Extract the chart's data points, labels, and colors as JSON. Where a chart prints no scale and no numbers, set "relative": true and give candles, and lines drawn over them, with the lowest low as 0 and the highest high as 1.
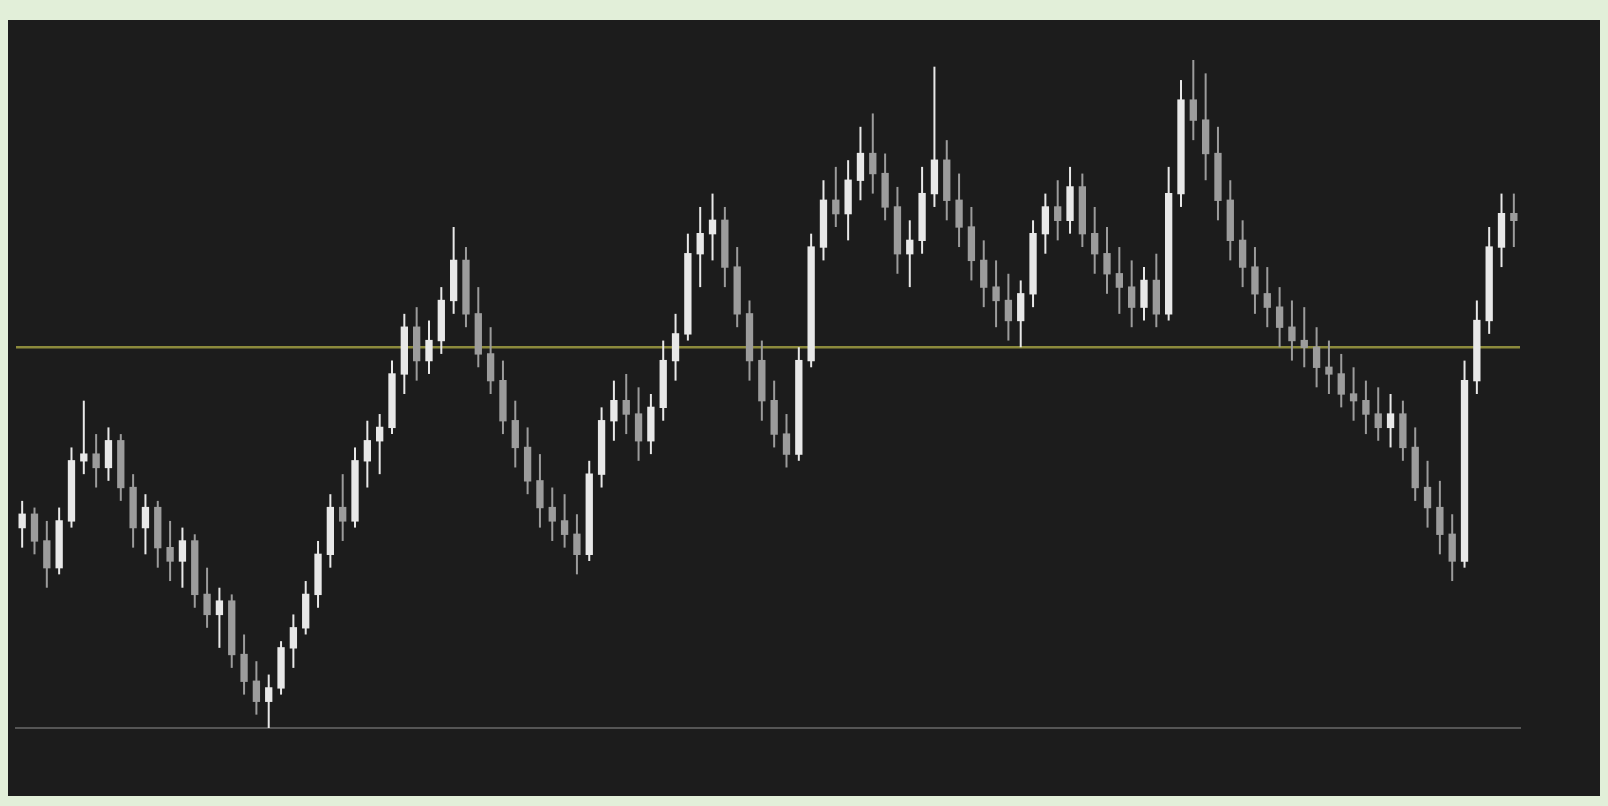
{
  "chart_data": {
    "type": "candlestick",
    "relative": true,
    "colors": [
      "#e8e8e8",
      "#9c9c9c",
      "#9c9c9c",
      "#e8e8e8",
      "#e8e8e8",
      "#e8e8e8",
      "#9c9c9c",
      "#e8e8e8",
      "#9c9c9c",
      "#9c9c9c",
      "#e8e8e8",
      "#9c9c9c",
      "#9c9c9c",
      "#e8e8e8",
      "#9c9c9c",
      "#9c9c9c",
      "#e8e8e8",
      "#9c9c9c",
      "#9c9c9c",
      "#9c9c9c",
      "#e8e8e8",
      "#e8e8e8",
      "#e8e8e8",
      "#e8e8e8",
      "#e8e8e8",
      "#e8e8e8",
      "#9c9c9c",
      "#e8e8e8",
      "#e8e8e8",
      "#e8e8e8",
      "#e8e8e8",
      "#e8e8e8",
      "#9c9c9c",
      "#e8e8e8",
      "#e8e8e8",
      "#e8e8e8",
      "#9c9c9c",
      "#9c9c9c",
      "#9c9c9c",
      "#9c9c9c",
      "#9c9c9c",
      "#9c9c9c",
      "#9c9c9c",
      "#9c9c9c",
      "#9c9c9c",
      "#9c9c9c",
      "#e8e8e8",
      "#e8e8e8",
      "#e8e8e8",
      "#9c9c9c",
      "#9c9c9c",
      "#e8e8e8",
      "#e8e8e8",
      "#e8e8e8",
      "#e8e8e8",
      "#e8e8e8",
      "#e8e8e8",
      "#9c9c9c",
      "#9c9c9c",
      "#9c9c9c",
      "#9c9c9c",
      "#9c9c9c",
      "#9c9c9c",
      "#e8e8e8",
      "#e8e8e8",
      "#e8e8e8",
      "#9c9c9c",
      "#e8e8e8",
      "#e8e8e8",
      "#9c9c9c",
      "#9c9c9c",
      "#9c9c9c",
      "#e8e8e8",
      "#e8e8e8",
      "#e8e8e8",
      "#9c9c9c",
      "#9c9c9c",
      "#9c9c9c",
      "#9c9c9c",
      "#9c9c9c",
      "#9c9c9c",
      "#e8e8e8",
      "#e8e8e8",
      "#e8e8e8",
      "#9c9c9c",
      "#e8e8e8",
      "#9c9c9c",
      "#9c9c9c",
      "#9c9c9c",
      "#9c9c9c",
      "#9c9c9c",
      "#e8e8e8",
      "#9c9c9c",
      "#e8e8e8",
      "#e8e8e8",
      "#9c9c9c",
      "#9c9c9c",
      "#9c9c9c",
      "#9c9c9c",
      "#9c9c9c",
      "#9c9c9c",
      "#9c9c9c",
      "#9c9c9c",
      "#9c9c9c",
      "#9c9c9c",
      "#9c9c9c",
      "#9c9c9c",
      "#9c9c9c",
      "#9c9c9c",
      "#9c9c9c",
      "#9c9c9c",
      "#e8e8e8",
      "#9c9c9c",
      "#9c9c9c",
      "#9c9c9c",
      "#9c9c9c",
      "#9c9c9c",
      "#e8e8e8",
      "#e8e8e8",
      "#e8e8e8",
      "#e8e8e8",
      "#9c9c9c"
    ],
    "categories": [
      null,
      null,
      null,
      null,
      null,
      null,
      null,
      null,
      null,
      null,
      null,
      null,
      null,
      null,
      null,
      null,
      null,
      null,
      null,
      null,
      null,
      null,
      null,
      null,
      null,
      null,
      null,
      null,
      null,
      null,
      null,
      null,
      null,
      null,
      null,
      null,
      null,
      null,
      null,
      null,
      null,
      null,
      null,
      null,
      null,
      null,
      null,
      null,
      null,
      null,
      null,
      null,
      null,
      null,
      null,
      null,
      null,
      null,
      null,
      null,
      null,
      null,
      null,
      null,
      null,
      null,
      null,
      null,
      null,
      null,
      null,
      null,
      null,
      null,
      null,
      null,
      null,
      null,
      null,
      null,
      null,
      null,
      null,
      null,
      null,
      null,
      null,
      null,
      null,
      null,
      null,
      null,
      null,
      null,
      null,
      null,
      null,
      null,
      null,
      null,
      null,
      null,
      null,
      null,
      null,
      null,
      null,
      null,
      null,
      null,
      null,
      null,
      null,
      null,
      null,
      null,
      null,
      null,
      null,
      null,
      null,
      null
    ],
    "ohlc": [
      [
        0.3,
        0.34,
        0.27,
        0.32
      ],
      [
        0.32,
        0.33,
        0.26,
        0.28
      ],
      [
        0.28,
        0.31,
        0.21,
        0.24
      ],
      [
        0.24,
        0.33,
        0.23,
        0.31
      ],
      [
        0.31,
        0.42,
        0.3,
        0.4
      ],
      [
        0.4,
        0.49,
        0.38,
        0.41
      ],
      [
        0.41,
        0.44,
        0.36,
        0.39
      ],
      [
        0.39,
        0.45,
        0.37,
        0.43
      ],
      [
        0.43,
        0.44,
        0.34,
        0.36
      ],
      [
        0.36,
        0.38,
        0.27,
        0.3
      ],
      [
        0.3,
        0.35,
        0.26,
        0.33
      ],
      [
        0.33,
        0.34,
        0.24,
        0.27
      ],
      [
        0.27,
        0.31,
        0.22,
        0.25
      ],
      [
        0.25,
        0.3,
        0.21,
        0.28
      ],
      [
        0.28,
        0.29,
        0.18,
        0.2
      ],
      [
        0.2,
        0.24,
        0.15,
        0.17
      ],
      [
        0.17,
        0.21,
        0.12,
        0.19
      ],
      [
        0.19,
        0.2,
        0.09,
        0.11
      ],
      [
        0.11,
        0.14,
        0.05,
        0.07
      ],
      [
        0.07,
        0.1,
        0.02,
        0.04
      ],
      [
        0.04,
        0.08,
        0,
        0.06
      ],
      [
        0.06,
        0.13,
        0.05,
        0.12
      ],
      [
        0.12,
        0.17,
        0.09,
        0.15
      ],
      [
        0.15,
        0.22,
        0.14,
        0.2
      ],
      [
        0.2,
        0.28,
        0.18,
        0.26
      ],
      [
        0.26,
        0.35,
        0.24,
        0.33
      ],
      [
        0.33,
        0.38,
        0.28,
        0.31
      ],
      [
        0.31,
        0.42,
        0.3,
        0.4
      ],
      [
        0.4,
        0.46,
        0.36,
        0.43
      ],
      [
        0.43,
        0.47,
        0.38,
        0.45
      ],
      [
        0.45,
        0.55,
        0.44,
        0.53
      ],
      [
        0.53,
        0.62,
        0.5,
        0.6
      ],
      [
        0.6,
        0.63,
        0.52,
        0.55
      ],
      [
        0.55,
        0.61,
        0.53,
        0.58
      ],
      [
        0.58,
        0.66,
        0.56,
        0.64
      ],
      [
        0.64,
        0.75,
        0.62,
        0.7
      ],
      [
        0.7,
        0.72,
        0.6,
        0.62
      ],
      [
        0.62,
        0.66,
        0.54,
        0.56
      ],
      [
        0.56,
        0.6,
        0.5,
        0.52
      ],
      [
        0.52,
        0.55,
        0.44,
        0.46
      ],
      [
        0.46,
        0.49,
        0.39,
        0.42
      ],
      [
        0.42,
        0.45,
        0.35,
        0.37
      ],
      [
        0.37,
        0.41,
        0.3,
        0.33
      ],
      [
        0.33,
        0.36,
        0.28,
        0.31
      ],
      [
        0.31,
        0.35,
        0.27,
        0.29
      ],
      [
        0.29,
        0.32,
        0.23,
        0.26
      ],
      [
        0.26,
        0.4,
        0.25,
        0.38
      ],
      [
        0.38,
        0.48,
        0.36,
        0.46
      ],
      [
        0.46,
        0.52,
        0.43,
        0.49
      ],
      [
        0.49,
        0.53,
        0.44,
        0.47
      ],
      [
        0.47,
        0.51,
        0.4,
        0.43
      ],
      [
        0.43,
        0.5,
        0.41,
        0.48
      ],
      [
        0.48,
        0.58,
        0.46,
        0.55
      ],
      [
        0.55,
        0.62,
        0.52,
        0.59
      ],
      [
        0.59,
        0.74,
        0.58,
        0.71
      ],
      [
        0.71,
        0.78,
        0.66,
        0.74
      ],
      [
        0.74,
        0.8,
        0.7,
        0.76
      ],
      [
        0.76,
        0.78,
        0.66,
        0.69
      ],
      [
        0.69,
        0.72,
        0.6,
        0.62
      ],
      [
        0.62,
        0.64,
        0.52,
        0.55
      ],
      [
        0.55,
        0.58,
        0.46,
        0.49
      ],
      [
        0.49,
        0.52,
        0.42,
        0.44
      ],
      [
        0.44,
        0.47,
        0.39,
        0.41
      ],
      [
        0.41,
        0.57,
        0.4,
        0.55
      ],
      [
        0.55,
        0.74,
        0.54,
        0.72
      ],
      [
        0.72,
        0.82,
        0.7,
        0.79
      ],
      [
        0.79,
        0.84,
        0.75,
        0.77
      ],
      [
        0.77,
        0.85,
        0.73,
        0.82
      ],
      [
        0.82,
        0.9,
        0.79,
        0.86
      ],
      [
        0.86,
        0.92,
        0.8,
        0.83
      ],
      [
        0.83,
        0.86,
        0.76,
        0.78
      ],
      [
        0.78,
        0.81,
        0.68,
        0.71
      ],
      [
        0.71,
        0.76,
        0.66,
        0.73
      ],
      [
        0.73,
        0.84,
        0.71,
        0.8
      ],
      [
        0.8,
        0.99,
        0.78,
        0.85
      ],
      [
        0.85,
        0.88,
        0.76,
        0.79
      ],
      [
        0.79,
        0.83,
        0.72,
        0.75
      ],
      [
        0.75,
        0.78,
        0.67,
        0.7
      ],
      [
        0.7,
        0.73,
        0.63,
        0.66
      ],
      [
        0.66,
        0.7,
        0.6,
        0.64
      ],
      [
        0.64,
        0.68,
        0.58,
        0.61
      ],
      [
        0.61,
        0.67,
        0.57,
        0.65
      ],
      [
        0.65,
        0.76,
        0.63,
        0.74
      ],
      [
        0.74,
        0.8,
        0.71,
        0.78
      ],
      [
        0.78,
        0.82,
        0.73,
        0.76
      ],
      [
        0.76,
        0.84,
        0.74,
        0.81
      ],
      [
        0.81,
        0.83,
        0.72,
        0.74
      ],
      [
        0.74,
        0.78,
        0.68,
        0.71
      ],
      [
        0.71,
        0.75,
        0.65,
        0.68
      ],
      [
        0.68,
        0.72,
        0.62,
        0.66
      ],
      [
        0.66,
        0.7,
        0.6,
        0.63
      ],
      [
        0.63,
        0.69,
        0.61,
        0.67
      ],
      [
        0.67,
        0.71,
        0.6,
        0.62
      ],
      [
        0.62,
        0.84,
        0.61,
        0.8
      ],
      [
        0.8,
        0.97,
        0.78,
        0.94
      ],
      [
        0.94,
        1,
        0.88,
        0.91
      ],
      [
        0.91,
        0.98,
        0.82,
        0.86
      ],
      [
        0.86,
        0.9,
        0.76,
        0.79
      ],
      [
        0.79,
        0.82,
        0.7,
        0.73
      ],
      [
        0.73,
        0.76,
        0.66,
        0.69
      ],
      [
        0.69,
        0.72,
        0.62,
        0.65
      ],
      [
        0.65,
        0.69,
        0.6,
        0.63
      ],
      [
        0.63,
        0.66,
        0.57,
        0.6
      ],
      [
        0.6,
        0.64,
        0.55,
        0.58
      ],
      [
        0.58,
        0.63,
        0.54,
        0.57
      ],
      [
        0.57,
        0.6,
        0.51,
        0.54
      ],
      [
        0.54,
        0.58,
        0.5,
        0.53
      ],
      [
        0.53,
        0.56,
        0.48,
        0.5
      ],
      [
        0.5,
        0.54,
        0.46,
        0.49
      ],
      [
        0.49,
        0.52,
        0.44,
        0.47
      ],
      [
        0.47,
        0.51,
        0.43,
        0.45
      ],
      [
        0.45,
        0.5,
        0.42,
        0.47
      ],
      [
        0.47,
        0.49,
        0.4,
        0.42
      ],
      [
        0.42,
        0.45,
        0.34,
        0.36
      ],
      [
        0.36,
        0.4,
        0.3,
        0.33
      ],
      [
        0.33,
        0.37,
        0.26,
        0.29
      ],
      [
        0.29,
        0.32,
        0.22,
        0.25
      ],
      [
        0.25,
        0.55,
        0.24,
        0.52
      ],
      [
        0.52,
        0.64,
        0.5,
        0.61
      ],
      [
        0.61,
        0.75,
        0.59,
        0.72
      ],
      [
        0.72,
        0.8,
        0.69,
        0.77
      ],
      [
        0.77,
        0.8,
        0.72,
        0.76
      ]
    ],
    "ref_lines": [
      {
        "axis": "y",
        "value": 0.57,
        "color": "#8c8a3c"
      }
    ]
  }
}
